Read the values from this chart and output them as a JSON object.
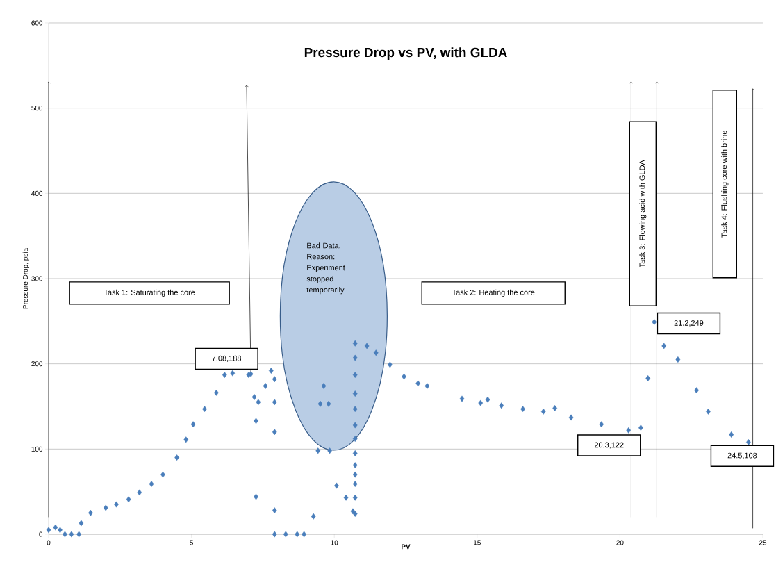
{
  "chart_data": {
    "type": "scatter",
    "title": "Pressure Drop vs PV, with GLDA",
    "xlabel": "PV",
    "ylabel": "Pressure Drop, psia",
    "x": [
      0,
      0.24,
      0.4,
      0.57,
      0.8,
      1.06,
      1.14,
      1.47,
      2.0,
      2.37,
      2.8,
      3.18,
      3.6,
      4.0,
      4.49,
      4.81,
      5.06,
      5.46,
      5.87,
      6.16,
      6.44,
      7.0,
      7.08,
      7.2,
      7.26,
      7.34,
      7.59,
      7.79,
      7.91,
      7.91,
      7.91,
      7.26,
      7.91,
      7.91,
      8.3,
      8.7,
      8.94,
      9.27,
      9.43,
      9.51,
      9.63,
      9.8,
      9.84,
      10.08,
      10.41,
      10.65,
      10.73,
      10.73,
      10.73,
      10.73,
      10.73,
      10.73,
      10.73,
      10.73,
      10.73,
      10.73,
      10.73,
      10.73,
      10.73,
      11.14,
      11.46,
      11.95,
      12.44,
      12.93,
      13.25,
      14.47,
      15.12,
      15.37,
      15.85,
      16.6,
      17.32,
      17.72,
      18.29,
      19.35,
      20.3,
      20.73,
      20.98,
      21.2,
      21.54,
      22.03,
      22.68,
      23.09,
      23.9,
      24.5
    ],
    "values": [
      5,
      8,
      5,
      0,
      0,
      0,
      13,
      25,
      31,
      35,
      41,
      49,
      59,
      70,
      90,
      111,
      129,
      147,
      166,
      187,
      189,
      187,
      188,
      161,
      133,
      155,
      174,
      192,
      182,
      155,
      120,
      44,
      28,
      0,
      0,
      0,
      0,
      21,
      98,
      153,
      174,
      153,
      98,
      57,
      43,
      27,
      24,
      43,
      59,
      70,
      81,
      95,
      112,
      128,
      147,
      165,
      187,
      207,
      224,
      221,
      213,
      199,
      185,
      177,
      174,
      159,
      154,
      158,
      151,
      147,
      144,
      148,
      137,
      129,
      122,
      125,
      183,
      249,
      221,
      205,
      169,
      144,
      117,
      108
    ],
    "color": "#4a7ebb",
    "marker": "diamond",
    "grid": "y",
    "xlim": [
      0,
      25
    ],
    "xticks": [
      0,
      5,
      10,
      15,
      20,
      25
    ],
    "ylim": [
      0,
      600
    ],
    "yticks": [
      0,
      100,
      200,
      300,
      400,
      500,
      600
    ],
    "annotations": [
      "Task 1: Saturating the core",
      "Bad Data. Reason: Experiment stopped temporarily",
      "Task 2: Heating the core",
      "Task 3: Flowing acid with GLDA",
      "Task 4: Flushing core with brine",
      {
        "text": "7.08,188",
        "x": 7.08,
        "y": 188
      },
      {
        "text": "20.3,122",
        "x": 20.3,
        "y": 122
      },
      {
        "text": "21.2,249",
        "x": 21.2,
        "y": 249
      },
      {
        "text": "24.5,108",
        "x": 24.5,
        "y": 108
      }
    ]
  }
}
